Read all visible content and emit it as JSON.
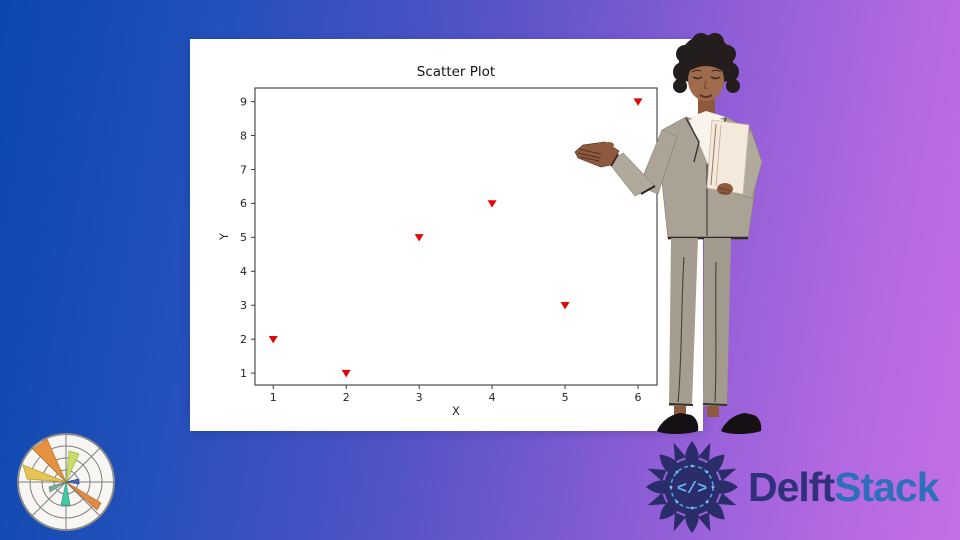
{
  "background": {
    "gradient_left": "#0a47ae",
    "gradient_mid": "#5253c6",
    "gradient_right": "#c36fe4"
  },
  "chart_data": {
    "type": "scatter",
    "title": "Scatter Plot",
    "xlabel": "X",
    "ylabel": "Y",
    "x": [
      1,
      2,
      3,
      4,
      5,
      6
    ],
    "y": [
      2,
      1,
      5,
      6,
      3,
      9
    ],
    "xticks": [
      1,
      2,
      3,
      4,
      5,
      6
    ],
    "yticks": [
      1,
      2,
      3,
      4,
      5,
      6,
      7,
      8,
      9
    ],
    "xlim": [
      0.75,
      6.26
    ],
    "ylim": [
      0.65,
      9.4
    ],
    "grid": false,
    "legend": null,
    "marker": "triangle-down",
    "marker_color": "#e00606",
    "frame_color": "#3c3c3c"
  },
  "branding": {
    "logo_text_primary": "Delft",
    "logo_text_secondary": "Stack",
    "primary_color": "#31307a",
    "secondary_color": "#2d6fba",
    "code_glyph": "</>"
  },
  "icons": {
    "polar_chart_icon": "polar rose chart logo",
    "delftstack_logo_icon": "mandala with code glyph",
    "presenter": "woman in gray suit presenting chart"
  }
}
